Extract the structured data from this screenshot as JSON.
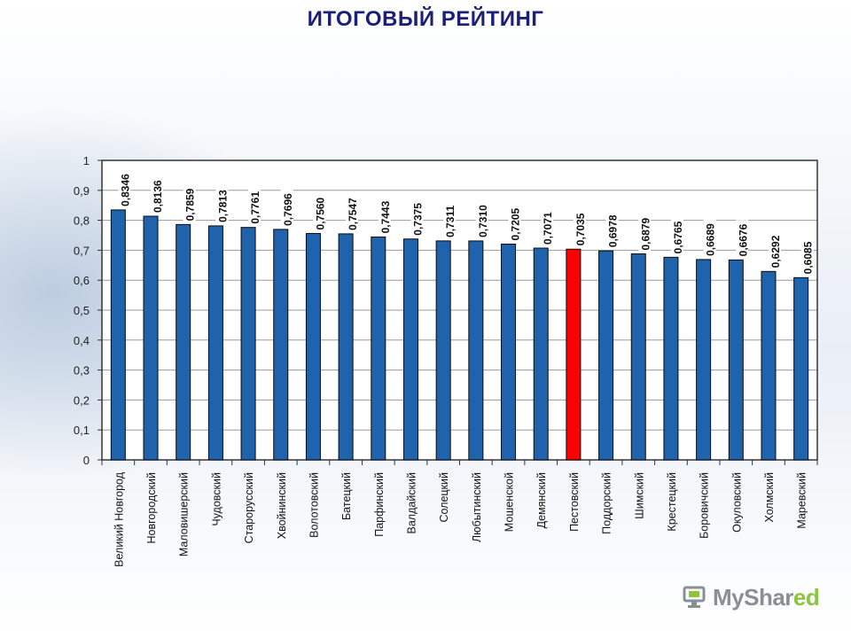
{
  "page": {
    "title": "ИТОГОВЫЙ РЕЙТИНГ"
  },
  "logo": {
    "text_main": "MyShar",
    "text_accent": "ed"
  },
  "colors": {
    "bar": "#1f63ad",
    "highlight": "#ff0000",
    "title": "#1b1f7a"
  },
  "chart_data": {
    "type": "bar",
    "title": "ИТОГОВЫЙ РЕЙТИНГ",
    "xlabel": "",
    "ylabel": "",
    "ylim": [
      0,
      1
    ],
    "yticks": [
      "0",
      "0,1",
      "0,2",
      "0,3",
      "0,4",
      "0,5",
      "0,6",
      "0,7",
      "0,8",
      "0,9",
      "1"
    ],
    "grid": true,
    "categories": [
      "Великий Новгород",
      "Новгородский",
      "Маловишерский",
      "Чудовский",
      "Старорусский",
      "Хвойнинский",
      "Волотовский",
      "Батецкий",
      "Парфинский",
      "Валдайский",
      "Солецкий",
      "Любытинский",
      "Мошенской",
      "Демянский",
      "Пестовский",
      "Поддорский",
      "Шимский",
      "Крестецкий",
      "Боровичский",
      "Окуловский",
      "Холмский",
      "Маревский"
    ],
    "values": [
      0.8346,
      0.8136,
      0.7859,
      0.7813,
      0.7761,
      0.7696,
      0.756,
      0.7547,
      0.7443,
      0.7375,
      0.7311,
      0.731,
      0.7205,
      0.7071,
      0.7035,
      0.6978,
      0.6879,
      0.6765,
      0.6689,
      0.6676,
      0.6292,
      0.6085
    ],
    "value_labels": [
      "0,8346",
      "0,8136",
      "0,7859",
      "0,7813",
      "0,7761",
      "0,7696",
      "0,7560",
      "0,7547",
      "0,7443",
      "0,7375",
      "0,7311",
      "0,7310",
      "0,7205",
      "0,7071",
      "0,7035",
      "0,6978",
      "0,6879",
      "0,6765",
      "0,6689",
      "0,6676",
      "0,6292",
      "0,6085"
    ],
    "highlight_category": "Пестовский"
  }
}
